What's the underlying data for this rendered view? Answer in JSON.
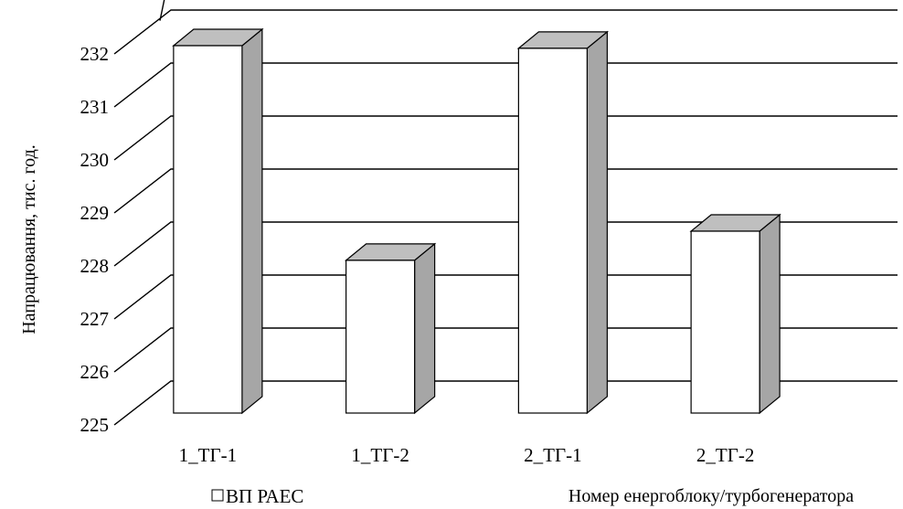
{
  "chart_data": {
    "type": "bar",
    "style": "3d-column",
    "categories": [
      "1_ТГ-1",
      "1_ТГ-2",
      "2_ТГ-1",
      "2_ТГ-2"
    ],
    "series": [
      {
        "name": "ВП РАЕС",
        "values": [
          232.0,
          227.95,
          231.95,
          228.5
        ]
      }
    ],
    "yticks": [
      225,
      226,
      227,
      228,
      229,
      230,
      231,
      232
    ],
    "ylim": [
      225,
      232.8
    ],
    "xlabel": "Номер енергоблоку/турбогенератора",
    "ylabel": "Напрацювання,  тис. год.",
    "grid": true,
    "legend": "bottom-left",
    "colors": {
      "bar_front": "#ffffff",
      "bar_side": "#a6a6a6",
      "bar_top": "#bfbfbf",
      "line": "#000000"
    }
  }
}
